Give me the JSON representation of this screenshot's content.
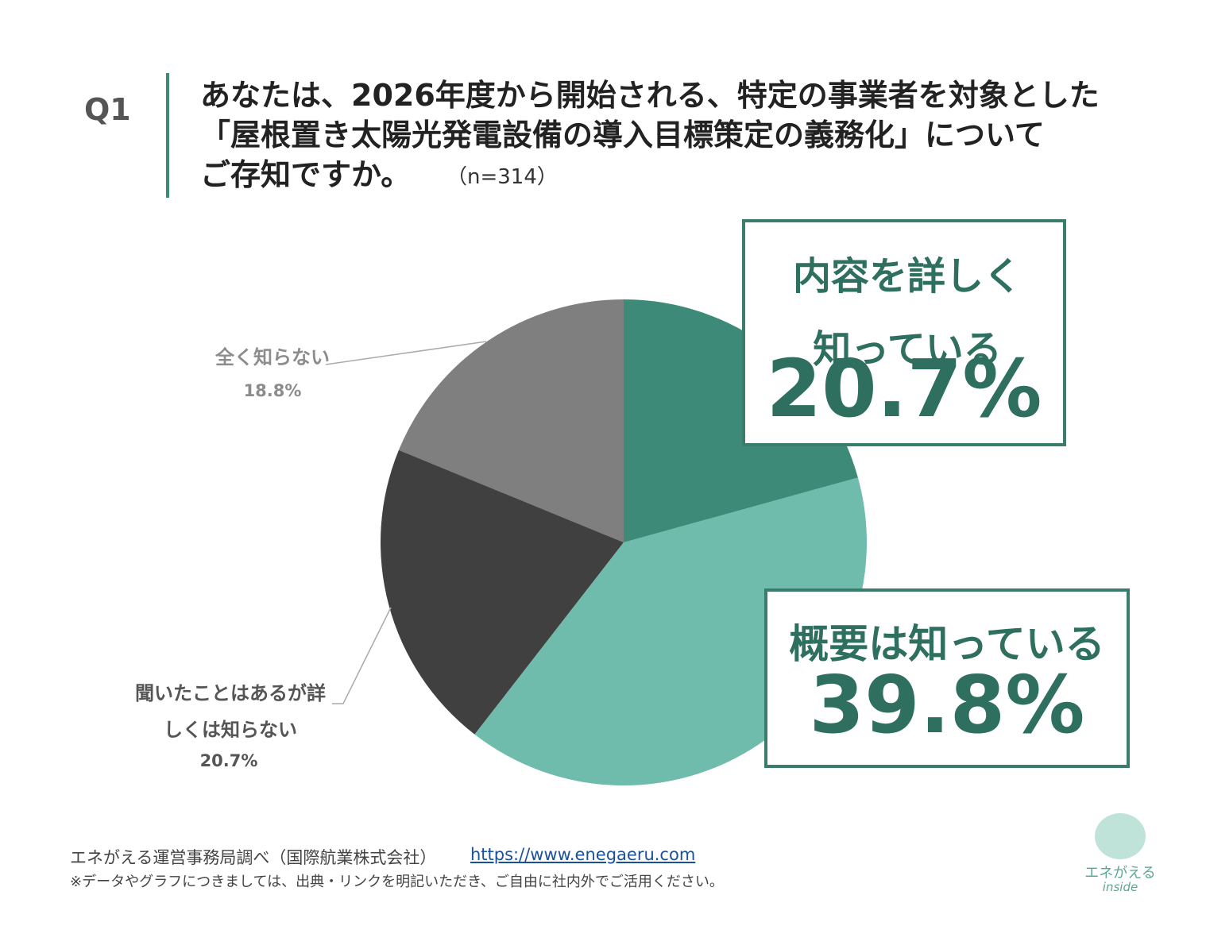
{
  "header": {
    "question": "Q1",
    "title": [
      "あなたは、2026年度から開始される、特定の事業者を対象とした",
      "「屋根置き太陽光発電設備の導入目標策定の義務化」について",
      "ご存知ですか。"
    ],
    "sample": "（n=314）"
  },
  "chart_data": {
    "type": "pie",
    "categories": [
      "内容を詳しく知っている",
      "概要は知っている",
      "聞いたことはあるが詳しくは知らない",
      "全く知らない"
    ],
    "values": [
      20.7,
      39.8,
      20.7,
      18.8
    ],
    "value_labels": [
      "20.7%",
      "39.8%",
      "20.7%",
      "18.8%"
    ],
    "colors": [
      "#3d8a78",
      "#6fbcad",
      "#404040",
      "#7f7f7f"
    ]
  },
  "footer": {
    "source": "エネがえる運営事務局調べ（国際航業株式会社）",
    "url": "https://www.enegaeru.com",
    "note": "※データやグラフにつきましては、出典・リンクを明記いただき、ご自由に社内外でご活用ください。",
    "logo": "エネがえる",
    "logo_sub": "inside"
  }
}
